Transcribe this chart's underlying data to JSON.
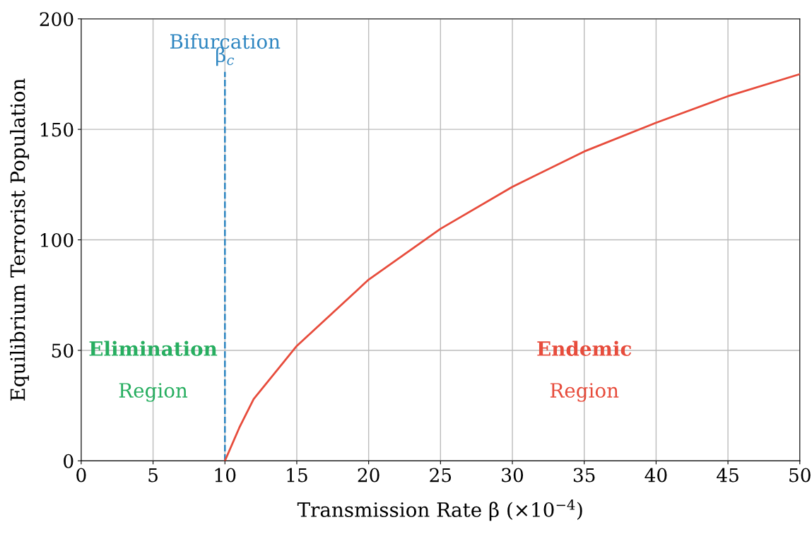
{
  "chart_data": {
    "type": "line",
    "xlabel": "Transmission Rate β (×10$^{−4}$)",
    "ylabel": "Equilibrium Terrorist Population",
    "x": [
      10,
      11,
      12,
      15,
      20,
      25,
      30,
      35,
      40,
      45,
      50
    ],
    "series": [
      {
        "color": "#e74c3c",
        "values": [
          0,
          15,
          28,
          52,
          82,
          105,
          124,
          140,
          153,
          165,
          175
        ]
      }
    ],
    "xlim": [
      0,
      50
    ],
    "xticks": [
      0,
      5,
      10,
      15,
      20,
      25,
      30,
      35,
      40,
      45,
      50
    ],
    "ylim": [
      0,
      200
    ],
    "yticks": [
      0,
      50,
      100,
      150,
      200
    ],
    "grid": true,
    "ref_lines": [
      {
        "axis": "x",
        "value": 10,
        "label": "β$_{c}$",
        "color": "#2e86c1",
        "line_style": "dashed"
      }
    ],
    "annotations": [
      "Bifurcation",
      "Elimination",
      "Region",
      "Endemic",
      "Region"
    ]
  }
}
